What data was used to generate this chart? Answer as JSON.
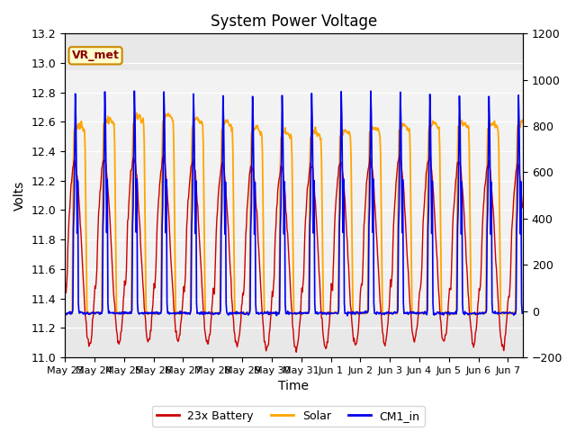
{
  "title": "System Power Voltage",
  "xlabel": "Time",
  "ylabel_left": "Volts",
  "ylim_left": [
    11.0,
    13.2
  ],
  "ylim_right": [
    -200,
    1200
  ],
  "yticks_left": [
    11.0,
    11.2,
    11.4,
    11.6,
    11.8,
    12.0,
    12.2,
    12.4,
    12.6,
    12.8,
    13.0,
    13.2
  ],
  "yticks_right": [
    -200,
    0,
    200,
    400,
    600,
    800,
    1000,
    1200
  ],
  "annotation_text": "VR_met",
  "annotation_box_facecolor": "#FFFFCC",
  "annotation_box_edgecolor": "#CC8800",
  "color_battery": "#CC0000",
  "color_solar": "#FFA500",
  "color_cm1": "#0000EE",
  "legend_labels": [
    "23x Battery",
    "Solar",
    "CM1_in"
  ],
  "plot_bg_color": "#E8E8E8",
  "inner_band_color": "#F2F2F2",
  "grid_color": "#FFFFFF",
  "title_fontsize": 12,
  "axis_fontsize": 10,
  "tick_fontsize": 9,
  "legend_fontsize": 9
}
